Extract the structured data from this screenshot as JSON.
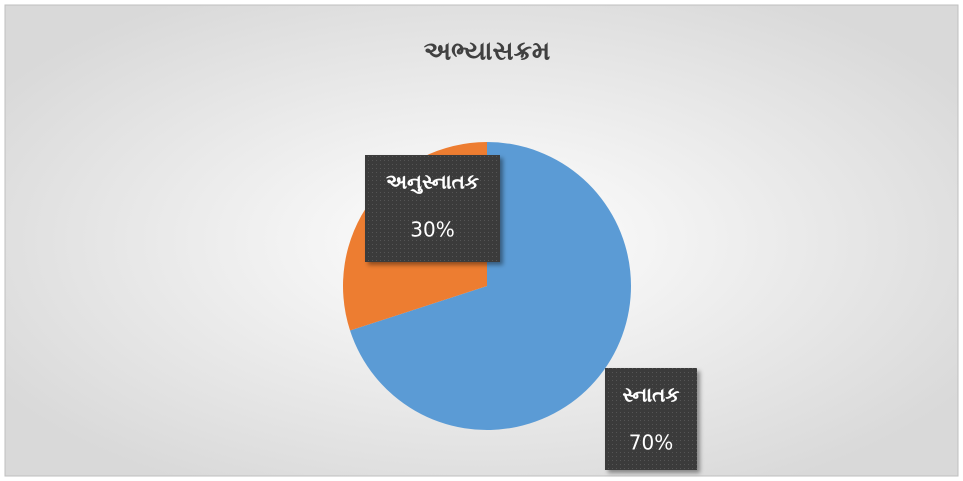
{
  "chart_data": {
    "type": "pie",
    "title": "અભ્યાસક્રમ",
    "categories": [
      "સ્નાતક",
      "અનુસ્નાતક"
    ],
    "values": [
      70,
      30
    ],
    "value_labels": [
      "70%",
      "30%"
    ],
    "colors": [
      "#5b9bd5",
      "#ed7d31"
    ]
  }
}
